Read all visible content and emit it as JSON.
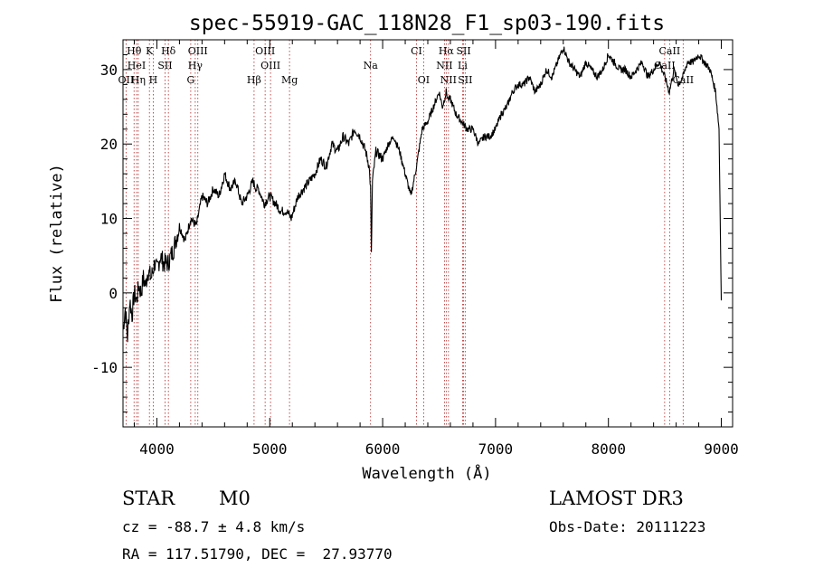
{
  "chart_data": {
    "type": "line",
    "title": "spec-55919-GAC_118N28_F1_sp03-190.fits",
    "xlabel": "Wavelength (Å)",
    "ylabel": "Flux (relative)",
    "xlim": [
      3700,
      9100
    ],
    "ylim": [
      -18,
      34
    ],
    "xticks": [
      4000,
      5000,
      6000,
      7000,
      8000,
      9000
    ],
    "yticks": [
      -10,
      0,
      10,
      20,
      30
    ],
    "series": [
      {
        "x": [
          3700,
          3720,
          3740,
          3760,
          3780,
          3800,
          3820,
          3840,
          3860,
          3880,
          3900,
          3920,
          3950,
          3980,
          4000,
          4030,
          4060,
          4100,
          4150,
          4200,
          4250,
          4300,
          4350,
          4400,
          4450,
          4500,
          4550,
          4600,
          4650,
          4700,
          4750,
          4800,
          4850,
          4880,
          4900,
          4950,
          5000,
          5050,
          5100,
          5150,
          5190,
          5250,
          5300,
          5350,
          5400,
          5450,
          5500,
          5550,
          5600,
          5650,
          5700,
          5750,
          5800,
          5850,
          5880,
          5893,
          5900,
          5910,
          5940,
          6000,
          6050,
          6100,
          6150,
          6200,
          6250,
          6300,
          6350,
          6400,
          6450,
          6500,
          6530,
          6563,
          6580,
          6600,
          6650,
          6700,
          6750,
          6800,
          6850,
          6900,
          6950,
          7000,
          7050,
          7100,
          7150,
          7200,
          7250,
          7300,
          7350,
          7400,
          7450,
          7500,
          7550,
          7600,
          7650,
          7700,
          7750,
          7800,
          7850,
          7900,
          7950,
          8000,
          8050,
          8100,
          8150,
          8200,
          8250,
          8300,
          8350,
          8400,
          8450,
          8500,
          8540,
          8580,
          8620,
          8660,
          8700,
          8750,
          8800,
          8850,
          8900,
          8950,
          8980,
          9000
        ],
        "y": [
          -5,
          -2,
          -6,
          -1,
          -3,
          0,
          -1,
          1,
          0,
          2,
          1,
          3,
          2,
          4,
          3,
          5,
          4,
          4,
          6,
          9,
          7,
          10,
          9,
          13,
          12,
          14,
          13,
          16,
          14,
          15,
          12,
          13,
          15,
          14,
          14,
          12,
          13,
          12,
          11,
          11,
          10,
          13,
          14,
          15,
          16,
          18,
          17,
          20,
          19,
          21,
          20,
          22,
          21,
          19,
          17,
          14,
          5,
          15,
          19,
          18,
          20,
          21,
          19,
          16,
          13,
          17,
          22,
          23,
          25,
          27,
          25,
          27,
          26,
          26,
          24,
          23,
          22,
          22,
          20,
          21,
          21,
          22,
          24,
          25,
          27,
          28,
          28,
          29,
          27,
          28,
          30,
          29,
          31,
          33,
          31,
          30,
          29,
          31,
          30,
          29,
          30,
          32,
          31,
          30,
          30,
          29,
          30,
          31,
          29,
          30,
          31,
          29,
          27,
          30,
          28,
          29,
          31,
          31,
          32,
          31,
          30,
          27,
          22,
          -1
        ]
      }
    ],
    "line_markers": [
      {
        "label": "Hθ",
        "wl": 3798,
        "row": 1
      },
      {
        "label": "K",
        "wl": 3934,
        "row": 1
      },
      {
        "label": "Hδ",
        "wl": 4102,
        "row": 1
      },
      {
        "label": "OIII",
        "wl": 4363,
        "row": 1
      },
      {
        "label": "OIII",
        "wl": 4959,
        "row": 1
      },
      {
        "label": "CI",
        "wl": 6300,
        "row": 1
      },
      {
        "label": "Hα",
        "wl": 6563,
        "row": 1
      },
      {
        "label": "SII",
        "wl": 6717,
        "row": 1
      },
      {
        "label": "CaII",
        "wl": 8542,
        "row": 1
      },
      {
        "label": "HeI",
        "wl": 3820,
        "row": 2
      },
      {
        "label": "SII",
        "wl": 4072,
        "row": 2
      },
      {
        "label": "Hγ",
        "wl": 4340,
        "row": 2
      },
      {
        "label": "OIII",
        "wl": 5007,
        "row": 2
      },
      {
        "label": "Na",
        "wl": 5893,
        "row": 2
      },
      {
        "label": "NII",
        "wl": 6548,
        "row": 2
      },
      {
        "label": "Li",
        "wl": 6708,
        "row": 2
      },
      {
        "label": "CaII",
        "wl": 8498,
        "row": 2
      },
      {
        "label": "OII",
        "wl": 3727,
        "row": 3
      },
      {
        "label": "Hη",
        "wl": 3835,
        "row": 3
      },
      {
        "label": "H",
        "wl": 3968,
        "row": 3
      },
      {
        "label": "G",
        "wl": 4300,
        "row": 3
      },
      {
        "label": "Hβ",
        "wl": 4861,
        "row": 3
      },
      {
        "label": "Mg",
        "wl": 5175,
        "row": 3
      },
      {
        "label": "OI",
        "wl": 6363,
        "row": 3
      },
      {
        "label": "NII",
        "wl": 6583,
        "row": 3
      },
      {
        "label": "SII",
        "wl": 6731,
        "row": 3
      },
      {
        "label": "CaII",
        "wl": 8662,
        "row": 3
      }
    ],
    "grid": false,
    "legend": "none"
  },
  "footer": {
    "class_label": "STAR",
    "subclass_label": "M0",
    "survey": "LAMOST DR3",
    "redshift": "cz = -88.7 ± 4.8 km/s",
    "obs_date": "Obs-Date: 20111223",
    "coords": "RA = 117.51790, DEC =  27.93770"
  }
}
